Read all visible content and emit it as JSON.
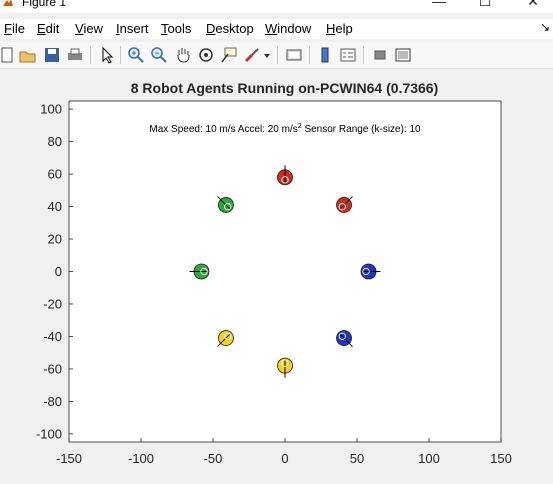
{
  "window": {
    "title": "Figure 1",
    "minimize_glyph": "—",
    "maximize_glyph": "☐",
    "close_glyph": "✕"
  },
  "menu": {
    "items": [
      {
        "label": "File",
        "key": "F",
        "rest": "ile"
      },
      {
        "label": "Edit",
        "key": "E",
        "rest": "dit"
      },
      {
        "label": "View",
        "key": "V",
        "rest": "iew"
      },
      {
        "label": "Insert",
        "key": "I",
        "rest": "nsert"
      },
      {
        "label": "Tools",
        "key": "T",
        "rest": "ools"
      },
      {
        "label": "Desktop",
        "key": "D",
        "rest": "esktop"
      },
      {
        "label": "Window",
        "key": "W",
        "rest": "indow"
      },
      {
        "label": "Help",
        "key": "H",
        "rest": "elp"
      }
    ],
    "overflow_glyph": "↘"
  },
  "toolbar": {
    "icons": [
      "new-figure-icon",
      "open-file-icon",
      "save-icon",
      "print-icon",
      "edit-plot-arrow-icon",
      "zoom-in-icon",
      "zoom-out-icon",
      "pan-hand-icon",
      "rotate-3d-icon",
      "data-cursor-icon",
      "brush-icon",
      "brush-dropdown-icon",
      "link-plot-icon",
      "insert-colorbar-icon",
      "insert-legend-icon",
      "hide-plot-tools-icon",
      "show-plot-tools-icon"
    ]
  },
  "axes": {
    "title": "8 Robot Agents Running on-PCWIN64 (0.7366)",
    "annotation_main": "Max Speed: 10 m/s Accel: 20 m/s",
    "annotation_sup": "2",
    "annotation_tail": " Sensor Range (k-size): 10",
    "xlim": [
      -150,
      150
    ],
    "ylim": [
      -105,
      105
    ],
    "xticks": [
      -150,
      -100,
      -50,
      0,
      50,
      100,
      150
    ],
    "yticks": [
      -100,
      -80,
      -60,
      -40,
      -20,
      0,
      20,
      40,
      60,
      80,
      100
    ],
    "grid": false
  },
  "chart_data": {
    "type": "scatter",
    "title": "8 Robot Agents Running on-PCWIN64 (0.7366)",
    "xlim": [
      -150,
      150
    ],
    "ylim": [
      -105,
      105
    ],
    "agents": [
      {
        "x": 0,
        "y": 58,
        "color": "#d42a1c",
        "heading_deg": -90
      },
      {
        "x": 41,
        "y": 41,
        "color": "#d42a1c",
        "heading_deg": -135
      },
      {
        "x": 58,
        "y": 0,
        "color": "#1f33cc",
        "heading_deg": 180
      },
      {
        "x": 41,
        "y": -41,
        "color": "#1f33cc",
        "heading_deg": 135
      },
      {
        "x": 0,
        "y": -58,
        "color": "#f2d21c",
        "heading_deg": 90
      },
      {
        "x": -41,
        "y": -41,
        "color": "#f2d21c",
        "heading_deg": 45
      },
      {
        "x": -58,
        "y": 0,
        "color": "#2aaa3a",
        "heading_deg": 0
      },
      {
        "x": -41,
        "y": 41,
        "color": "#2aaa3a",
        "heading_deg": -45
      }
    ]
  }
}
